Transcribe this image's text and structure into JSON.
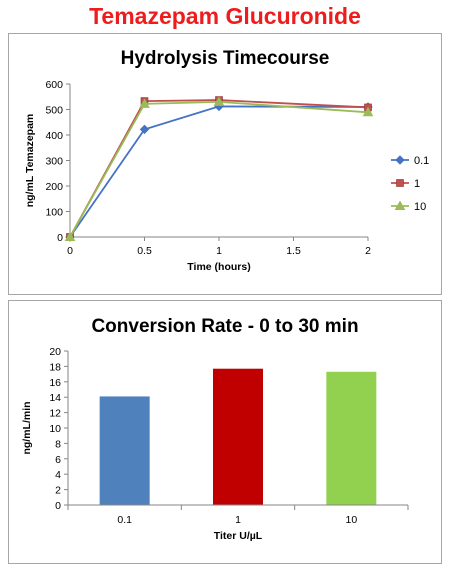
{
  "page": {
    "title": "Temazepam Glucuronide"
  },
  "chart_data": [
    {
      "type": "line",
      "title": "Hydrolysis Timecourse",
      "xlabel": "Time (hours)",
      "ylabel": "ng/mL Temazepam",
      "x": [
        0,
        0.5,
        1,
        2
      ],
      "xlim": [
        0,
        2
      ],
      "ylim": [
        0,
        600
      ],
      "xticks": [
        "0",
        "0.5",
        "1",
        "1.5",
        "2"
      ],
      "yticks": [
        "0",
        "100",
        "200",
        "300",
        "400",
        "500",
        "600"
      ],
      "legend_position": "right",
      "grid": false,
      "series": [
        {
          "name": "0.1",
          "values": [
            0,
            422,
            512,
            510
          ],
          "color": "#4472c4",
          "marker": "diamond"
        },
        {
          "name": "1",
          "values": [
            0,
            533,
            537,
            508
          ],
          "color": "#c0504d",
          "marker": "square"
        },
        {
          "name": "10",
          "values": [
            0,
            522,
            530,
            489
          ],
          "color": "#9bbb59",
          "marker": "triangle"
        }
      ]
    },
    {
      "type": "bar",
      "title": "Conversion Rate - 0 to 30 min",
      "xlabel": "Titer U/µL",
      "ylabel": "ng/mL/min",
      "categories": [
        "0.1",
        "1",
        "10"
      ],
      "values": [
        14.1,
        17.7,
        17.3
      ],
      "colors": [
        "#4f81bd",
        "#c00000",
        "#92d050"
      ],
      "ylim": [
        0,
        20
      ],
      "yticks": [
        "0",
        "2",
        "4",
        "6",
        "8",
        "10",
        "12",
        "14",
        "16",
        "18",
        "20"
      ],
      "grid": false
    }
  ]
}
